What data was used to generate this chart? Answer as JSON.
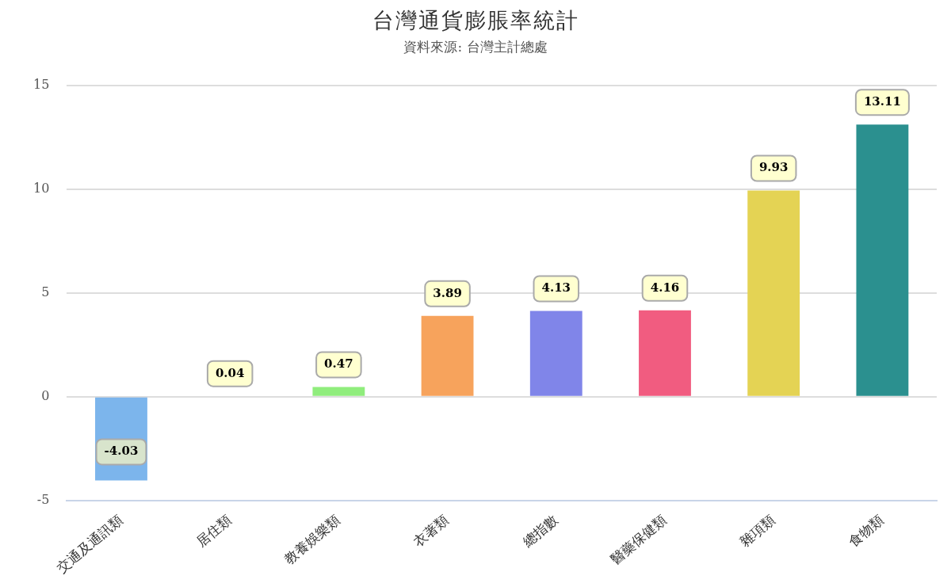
{
  "chart_data": {
    "type": "bar",
    "title": "台灣通貨膨脹率統計",
    "subtitle": "資料來源: 台灣主計總處",
    "categories": [
      "交通及通訊類",
      "居住類",
      "教養娛樂類",
      "衣著類",
      "總指數",
      "醫藥保健類",
      "雜項類",
      "食物類"
    ],
    "values": [
      -4.03,
      0.04,
      0.47,
      3.89,
      4.13,
      4.16,
      9.93,
      13.11
    ],
    "colors": [
      "#7cb5ec",
      "#434348",
      "#90ed7d",
      "#f7a35c",
      "#8085e9",
      "#f15c80",
      "#e4d354",
      "#2b908f"
    ],
    "ylim": [
      -5,
      15
    ],
    "yticks": [
      -5,
      0,
      5,
      10,
      15
    ],
    "grid": "y",
    "legend": false,
    "data_labels": true
  }
}
